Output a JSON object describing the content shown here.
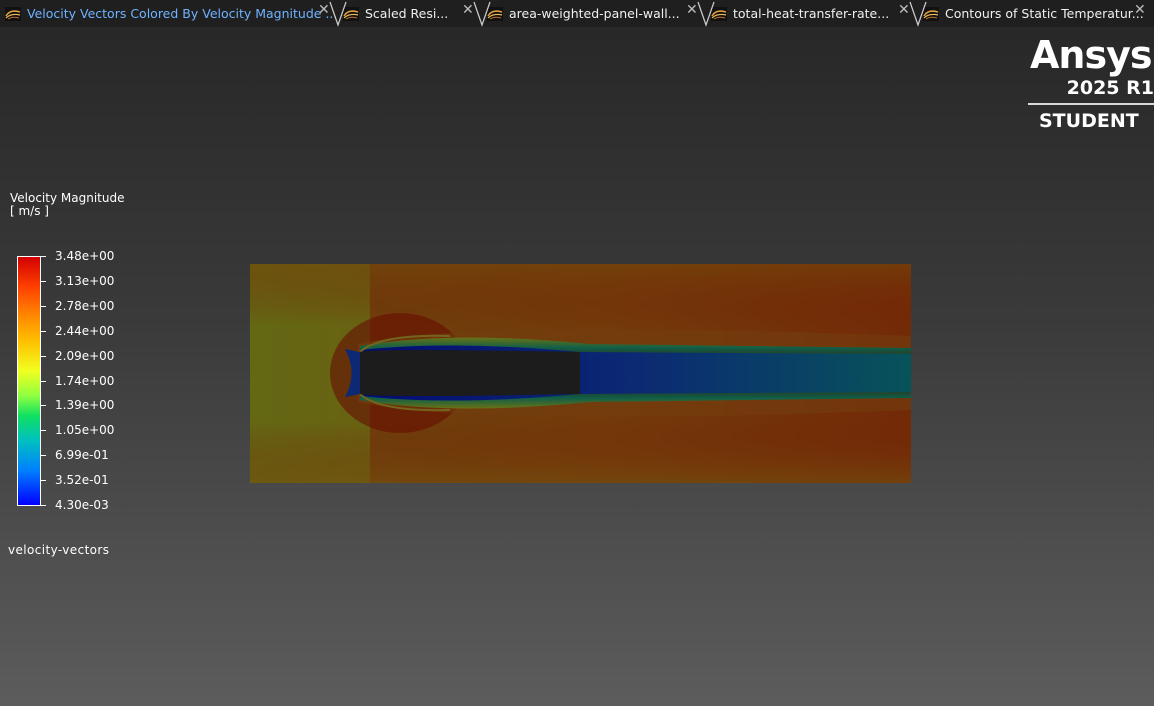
{
  "tabs": [
    {
      "label": "Velocity Vectors Colored By Velocity Magnitude ...",
      "active": true,
      "icon": "fluent-graphics-icon"
    },
    {
      "label": "Scaled Resi...",
      "active": false,
      "icon": "fluent-graphics-icon"
    },
    {
      "label": "area-weighted-panel-wall...",
      "active": false,
      "icon": "fluent-graphics-icon"
    },
    {
      "label": "total-heat-transfer-rate...",
      "active": false,
      "icon": "fluent-graphics-icon"
    },
    {
      "label": "Contours of Static Temperatur...",
      "active": false,
      "icon": "fluent-graphics-icon"
    }
  ],
  "close_glyph": "✕",
  "logo": {
    "name": "Ansys",
    "version": "2025 R1",
    "edition": "STUDENT"
  },
  "legend": {
    "title": "Velocity Magnitude",
    "unit": "[ m/s ]",
    "labels": [
      "3.48e+00",
      "3.13e+00",
      "2.78e+00",
      "2.44e+00",
      "2.09e+00",
      "1.74e+00",
      "1.39e+00",
      "1.05e+00",
      "6.99e-01",
      "3.52e-01",
      "4.30e-03"
    ],
    "colors": [
      "#d20000",
      "#ff4000",
      "#ff8a00",
      "#ffc000",
      "#f0ff20",
      "#8eff40",
      "#10e060",
      "#00c0c0",
      "#0080ff",
      "#0000ff"
    ]
  },
  "caption": "velocity-vectors",
  "colors": {
    "tab_active": "#6fb3ff",
    "background_top": "#262626",
    "background_bottom": "#5c5c5c"
  }
}
